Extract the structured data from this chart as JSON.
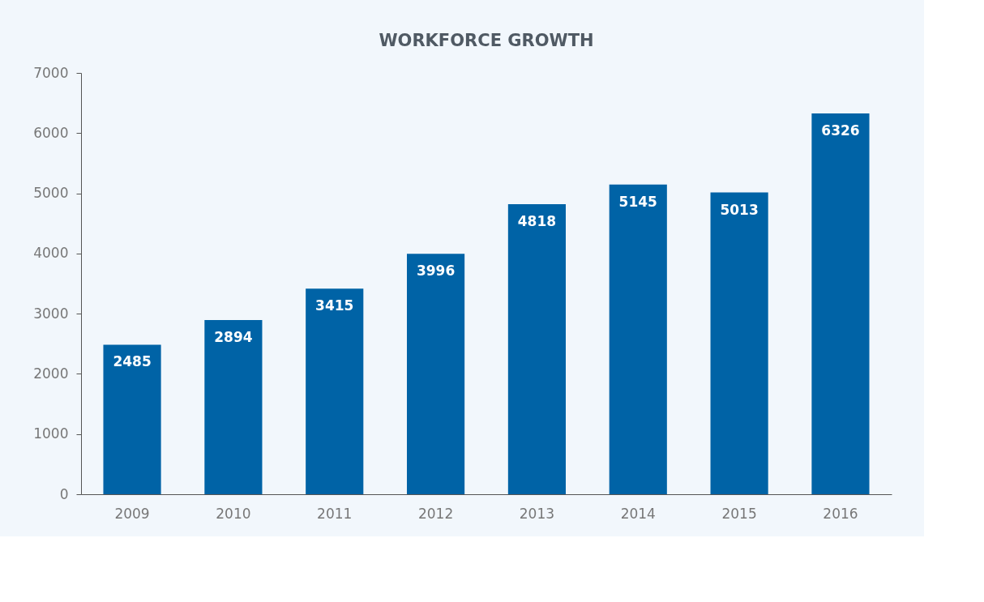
{
  "chart_data": {
    "type": "bar",
    "title": "WORKFORCE GROWTH",
    "categories": [
      "2009",
      "2010",
      "2011",
      "2012",
      "2013",
      "2014",
      "2015",
      "2016"
    ],
    "values": [
      2485,
      2894,
      3415,
      3996,
      4818,
      5145,
      5013,
      6326
    ],
    "color": "#0063a6",
    "ylim": [
      0,
      7000
    ],
    "yticks": [
      0,
      1000,
      2000,
      3000,
      4000,
      5000,
      6000,
      7000
    ],
    "grid": false,
    "data_labels": true
  }
}
